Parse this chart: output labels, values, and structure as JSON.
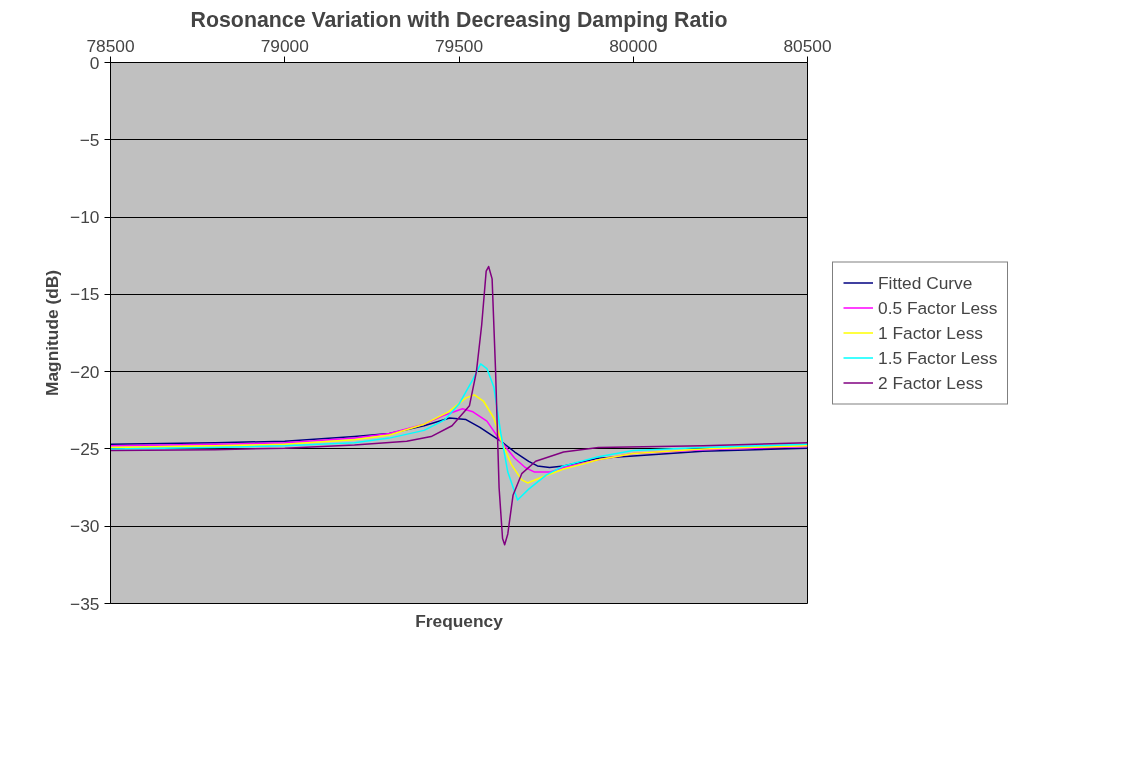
{
  "chart_data": {
    "type": "line",
    "title": "Rosonance Variation with Decreasing Damping Ratio",
    "xlabel": "Frequency",
    "ylabel": "Magnitude (dB)",
    "xlim": [
      78500,
      80500
    ],
    "xticks": [
      78500,
      79000,
      79500,
      80000,
      80500
    ],
    "ylim": [
      -35,
      0
    ],
    "yticks": [
      0,
      -5,
      -10,
      -15,
      -20,
      -25,
      -30,
      -35
    ],
    "grid": "y",
    "legend": "right",
    "marker": "none",
    "line_style": "solid",
    "series": [
      {
        "name": "Fitted Curve",
        "color": "#000080",
        "x": [
          78500,
          78800,
          79000,
          79200,
          79300,
          79400,
          79473,
          79520,
          79560,
          79600,
          79620,
          79660,
          79700,
          79725,
          79760,
          79800,
          79900,
          80000,
          80200,
          80500
        ],
        "values": [
          -24.7,
          -24.6,
          -24.5,
          -24.2,
          -24.0,
          -23.5,
          -23.0,
          -23.1,
          -23.6,
          -24.2,
          -24.5,
          -25.2,
          -25.8,
          -26.1,
          -26.2,
          -26.1,
          -25.6,
          -25.45,
          -25.15,
          -24.95
        ]
      },
      {
        "name": "0.5 Factor Less",
        "color": "#ff00ff",
        "x": [
          78500,
          78800,
          79000,
          79200,
          79300,
          79400,
          79460,
          79510,
          79540,
          79580,
          79620,
          79660,
          79690,
          79717,
          79760,
          79800,
          79900,
          80000,
          80200,
          80500
        ],
        "values": [
          -24.8,
          -24.7,
          -24.6,
          -24.3,
          -24.0,
          -23.4,
          -22.8,
          -22.4,
          -22.6,
          -23.2,
          -24.5,
          -25.6,
          -26.2,
          -26.5,
          -26.5,
          -26.2,
          -25.7,
          -25.3,
          -25.05,
          -24.85
        ]
      },
      {
        "name": "1 Factor Less",
        "color": "#ffff00",
        "x": [
          78500,
          78800,
          79000,
          79200,
          79300,
          79400,
          79470,
          79520,
          79544,
          79570,
          79600,
          79620,
          79650,
          79680,
          79697,
          79730,
          79800,
          79900,
          80000,
          80200,
          80500
        ],
        "values": [
          -24.9,
          -24.8,
          -24.7,
          -24.4,
          -24.1,
          -23.4,
          -22.6,
          -21.7,
          -21.5,
          -21.9,
          -23.0,
          -24.4,
          -26.0,
          -27.0,
          -27.2,
          -26.9,
          -26.3,
          -25.7,
          -25.3,
          -25.0,
          -24.8
        ]
      },
      {
        "name": "1.5 Factor Less",
        "color": "#00ffff",
        "x": [
          78500,
          78800,
          79000,
          79200,
          79300,
          79400,
          79460,
          79500,
          79540,
          79562,
          79580,
          79600,
          79620,
          79640,
          79668,
          79700,
          79750,
          79800,
          79900,
          80000,
          80200,
          80500
        ],
        "values": [
          -25.0,
          -24.9,
          -24.8,
          -24.6,
          -24.3,
          -23.8,
          -23.1,
          -22.1,
          -20.5,
          -19.5,
          -19.8,
          -21.0,
          -24.0,
          -26.5,
          -28.3,
          -27.6,
          -26.7,
          -26.1,
          -25.5,
          -25.1,
          -24.9,
          -24.7
        ]
      },
      {
        "name": "2 Factor Less",
        "color": "#800080",
        "x": [
          78500,
          78800,
          79000,
          79200,
          79350,
          79420,
          79480,
          79530,
          79550,
          79565,
          79578,
          79585,
          79595,
          79605,
          79615,
          79625,
          79631,
          79640,
          79655,
          79680,
          79720,
          79800,
          79900,
          80200,
          80500
        ],
        "values": [
          -25.1,
          -25.05,
          -24.95,
          -24.75,
          -24.5,
          -24.2,
          -23.5,
          -22.2,
          -20.0,
          -17.0,
          -13.5,
          -13.2,
          -14.0,
          -20.0,
          -27.5,
          -30.8,
          -31.2,
          -30.5,
          -28.0,
          -26.6,
          -25.8,
          -25.2,
          -24.9,
          -24.8,
          -24.6
        ]
      }
    ]
  }
}
